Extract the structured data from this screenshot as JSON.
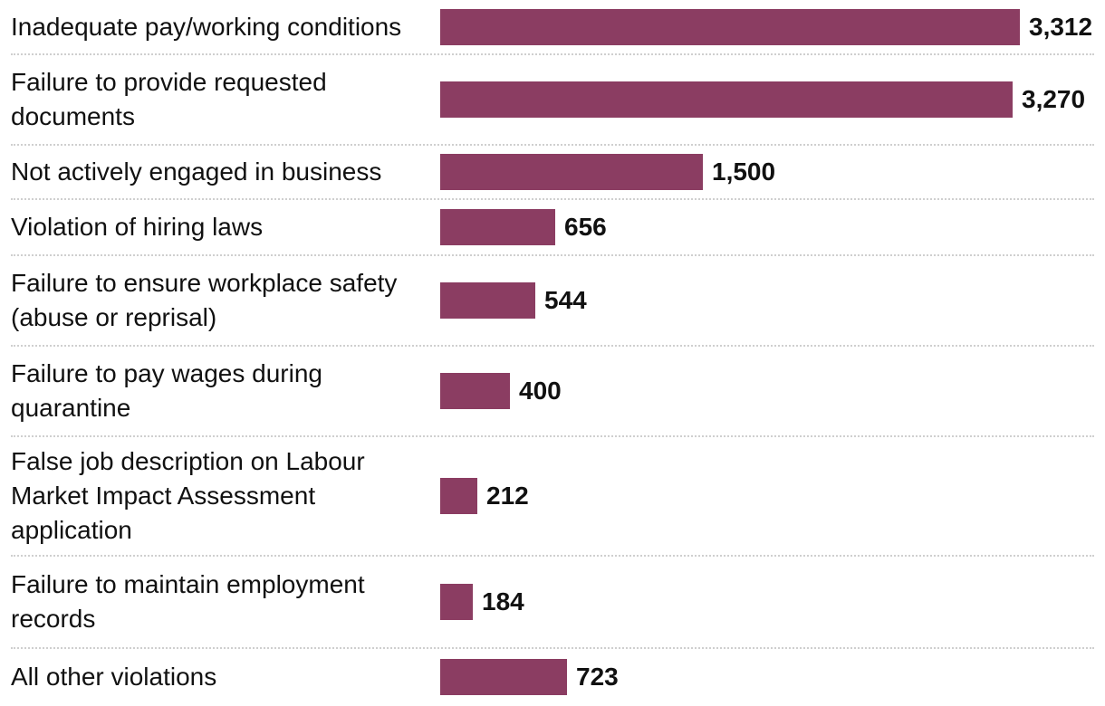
{
  "chart_data": {
    "type": "bar",
    "orientation": "horizontal",
    "categories": [
      "Inadequate pay/working conditions",
      "Failure to provide requested documents",
      "Not actively engaged in business",
      "Violation of hiring laws",
      "Failure to ensure workplace safety (abuse or reprisal)",
      "Failure to pay wages during quarantine",
      "False job description on Labour Market Impact Assessment application",
      "Failure to maintain employment records",
      "All other violations"
    ],
    "values": [
      3312,
      3270,
      1500,
      656,
      544,
      400,
      212,
      184,
      723
    ],
    "value_labels": [
      "3,312",
      "3,270",
      "1,500",
      "656",
      "544",
      "400",
      "212",
      "184",
      "723"
    ],
    "xlim": [
      0,
      3312
    ],
    "bar_color": "#8b3d62",
    "title": "",
    "xlabel": "",
    "ylabel": "",
    "grid": false
  }
}
